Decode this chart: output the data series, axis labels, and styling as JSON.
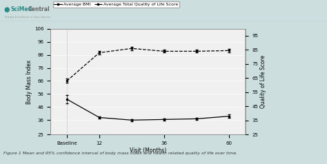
{
  "x_labels": [
    "Baseline",
    "12",
    "36",
    "60"
  ],
  "x_positions": [
    0,
    1,
    3,
    5
  ],
  "all_x": [
    0,
    1,
    2,
    3,
    4,
    5
  ],
  "bmi_y": [
    52,
    38,
    36,
    36.5,
    37,
    39
  ],
  "bmi_err": [
    3.0,
    0.8,
    0.8,
    0.8,
    0.8,
    1.2
  ],
  "qol_y": [
    63,
    83,
    86,
    84,
    84,
    84.5
  ],
  "qol_err": [
    1.5,
    1.2,
    1.2,
    1.0,
    1.0,
    1.2
  ],
  "ylabel_left": "Body Mass Index",
  "ylabel_right": "Quality of Life Score",
  "xlabel": "Visit (Months)",
  "ylim_left": [
    25,
    106
  ],
  "ylim_right": [
    25,
    100
  ],
  "yticks_left": [
    25,
    36,
    46,
    56,
    66,
    76,
    86,
    96,
    106
  ],
  "yticks_right": [
    25,
    35,
    45,
    55,
    65,
    75,
    85,
    95
  ],
  "legend_bmi": "Average BMI",
  "legend_qol": "Average Total Quality of Life Score",
  "outer_bg": "#ccdede",
  "plot_bg": "#f0f0f0",
  "white_bg": "#ffffff",
  "caption_bg": "#b8d4d4",
  "caption": "Figure 1 Mean and 95% confidence interval of body mass index and health related quality of life over time.",
  "axis_fontsize": 5.5,
  "tick_fontsize": 5.0,
  "legend_fontsize": 4.5,
  "caption_fontsize": 4.5,
  "header_green": "#2a8a8a",
  "header_gray": "#666666"
}
